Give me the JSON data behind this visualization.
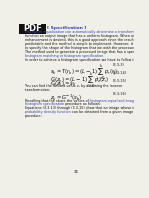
{
  "bg_color": "#f0efe8",
  "pdf_box_color": "#111111",
  "pdf_text": "PDF",
  "title": "[ Specification ]",
  "title_color": "#3344bb",
  "body_lines": [
    {
      "text": "Histogram equalization can automatically determine a transformation",
      "color": "#3344bb"
    },
    {
      "text": "function on output image that has a uniform histogram. When automatic",
      "color": "#111111"
    },
    {
      "text": "enhancement is desired, this is a good approach since the results from this technique are",
      "color": "#111111"
    },
    {
      "text": "predictable and the method is simple to implement. However, it is useful sometimes to be able",
      "color": "#111111"
    },
    {
      "text": "to specify the shape of the histogram that we wish the processed image to have.",
      "color": "#111111"
    },
    {
      "text": "The method used to generate a processed image that has a specified histogram is called",
      "color": "#111111"
    },
    {
      "text": "histogram matching or histogram specification.",
      "color": "#3344bb"
    },
    {
      "text": "In order to achieve a histogram specification we have to follow the following equations:",
      "color": "#111111"
    }
  ],
  "eq1_tex": "$s_k = T(r_k) = (L-1)\\sum_{j=0}^{k}p_r(r_j)$",
  "eq1_label": "(3.3-3)",
  "eq2_tex": "$G(z_k) = (L-1)\\sum_{i=0}^{k}p_z(z_i)$",
  "eq2_label": "(3.3-14)",
  "eq3_tex": "$G(z_k) = s_k$",
  "eq3_label": "(3.3-15)",
  "note_line1": "You can find the desired value z",
  "note_line1b": "k",
  "note_line1c": " by obtaining the inverse",
  "note_line2": "transformation:",
  "eq4_tex": "$z_k = G^{-1}(s_k)$",
  "eq4_label": "(3.3-16)",
  "footer_lines": [
    {
      "parts": [
        {
          "text": "Recalling that the s",
          "color": "#111111"
        },
        {
          "text": "k",
          "color": "#111111",
          "sub": true
        },
        {
          "text": " are the values of ",
          "color": "#111111"
        },
        {
          "text": "histogram-equalized image",
          "color": "#3344bb"
        },
        {
          "text": ", we can summarize the",
          "color": "#111111"
        }
      ]
    },
    {
      "parts": [
        {
          "text": "histogram specification",
          "color": "#3344bb"
        },
        {
          "text": " procedure as follows:",
          "color": "#111111"
        }
      ]
    },
    {
      "parts": [
        {
          "text": "Equations (3.3-13) through (3.3-15) show that an image whose intensity levels have a specified",
          "color": "#111111"
        }
      ]
    },
    {
      "parts": [
        {
          "text": "probability density function",
          "color": "#3344bb"
        },
        {
          "text": " can be obtained from a given image by using the following",
          "color": "#111111"
        }
      ]
    },
    {
      "parts": [
        {
          "text": "procedure:",
          "color": "#111111"
        }
      ]
    }
  ],
  "page_num": "31"
}
